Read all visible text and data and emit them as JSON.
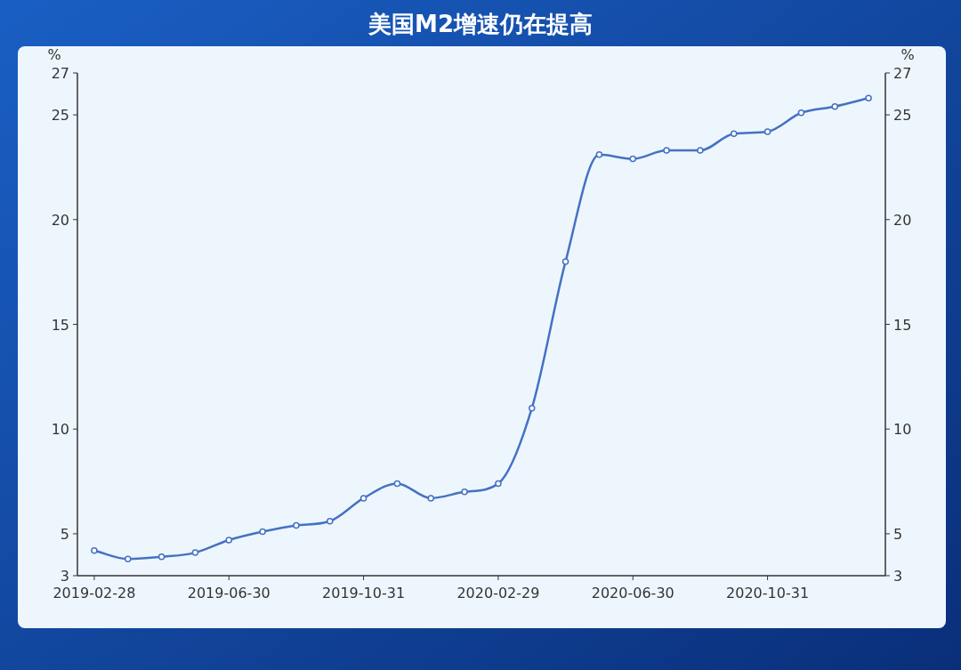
{
  "chart_data": {
    "type": "line",
    "title": "美国M2增速仍在提高",
    "ylabel": "%",
    "y2label": "%",
    "categories": [
      "2019-02-28",
      null,
      null,
      null,
      "2019-06-30",
      null,
      null,
      null,
      "2019-10-31",
      null,
      null,
      null,
      "2020-02-29",
      null,
      null,
      null,
      "2020-06-30",
      null,
      null,
      null,
      "2020-10-31",
      null,
      null,
      null
    ],
    "series": [
      {
        "color": "#4472c4",
        "values": [
          4.2,
          3.8,
          3.9,
          4.1,
          4.7,
          5.1,
          5.4,
          5.6,
          6.7,
          7.4,
          6.7,
          7.0,
          7.4,
          11.0,
          18.0,
          23.1,
          22.9,
          23.3,
          23.3,
          24.1,
          24.2,
          25.1,
          25.4,
          25.8
        ]
      }
    ],
    "ylim": [
      3,
      27
    ],
    "yticks": [
      3,
      5,
      10,
      15,
      20,
      25,
      27
    ],
    "y2lim": [
      3,
      27
    ],
    "y2ticks": [
      3,
      5,
      10,
      15,
      20,
      25,
      27
    ],
    "marker": "circle",
    "grid": false
  }
}
